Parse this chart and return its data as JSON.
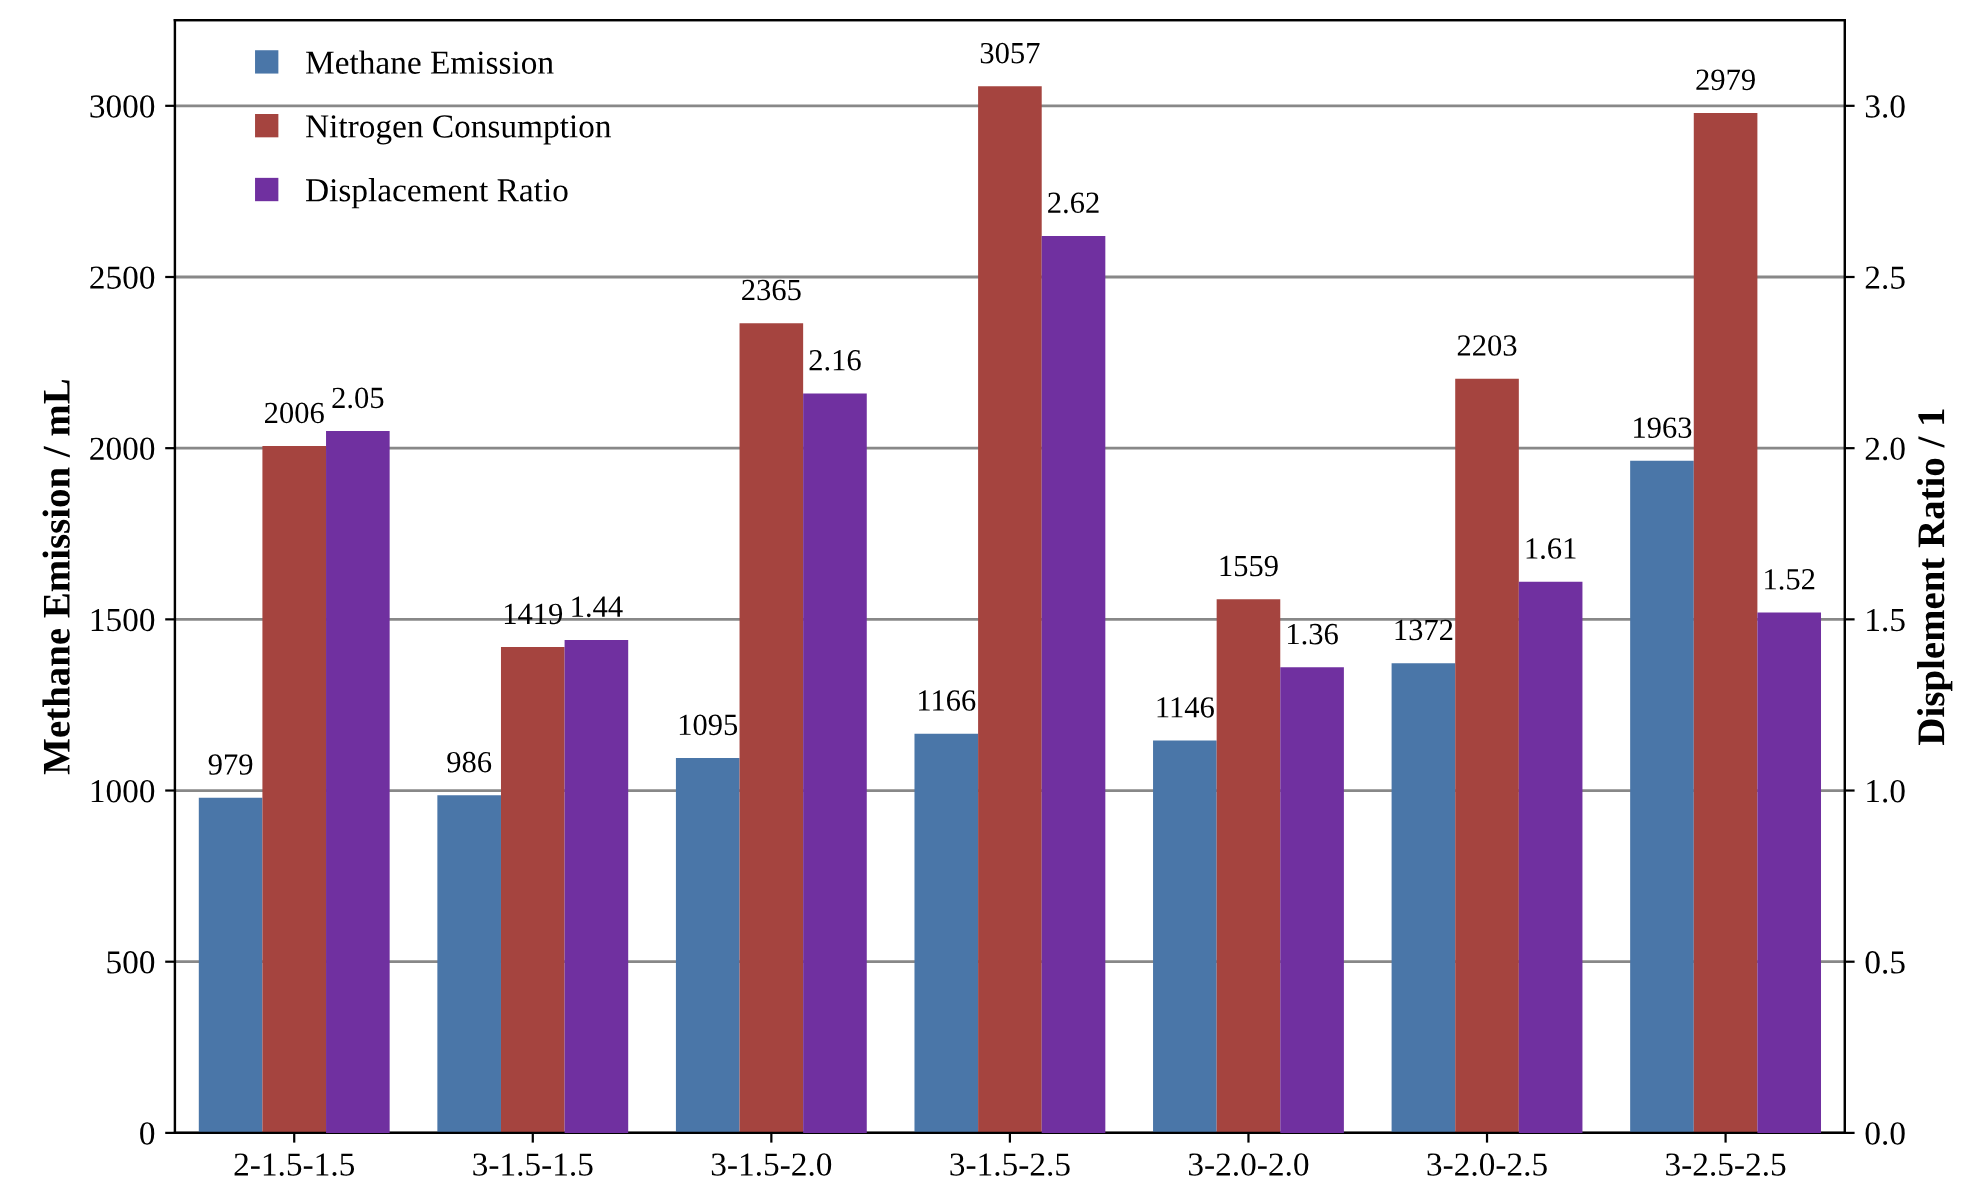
{
  "chart_data": {
    "type": "bar",
    "ylabel": "Methane Emission / mL",
    "y2label": "Displement Ratio / 1",
    "categories": [
      "2-1.5-1.5",
      "3-1.5-1.5",
      "3-1.5-2.0",
      "3-1.5-2.5",
      "3-2.0-2.0",
      "3-2.0-2.5",
      "3-2.5-2.5"
    ],
    "series": [
      {
        "name": "Methane Emission",
        "color": "#4a76a8",
        "values": [
          979,
          986,
          1095,
          1166,
          1146,
          1372,
          1963
        ]
      },
      {
        "name": "Nitrogen Consumption",
        "color": "#a5443f",
        "values": [
          2006,
          1419,
          2365,
          3057,
          1559,
          2203,
          2979
        ]
      },
      {
        "name": "Displacement Ratio",
        "color": "#7030a0",
        "axis": "y2",
        "values": [
          2.05,
          1.44,
          2.16,
          2.62,
          1.36,
          1.61,
          1.52
        ]
      }
    ],
    "ylim": [
      0,
      3250
    ],
    "yticks": [
      0,
      500,
      1000,
      1500,
      2000,
      2500,
      3000
    ],
    "y2lim": [
      0,
      3.25
    ],
    "y2ticks": [
      {
        "value": 0,
        "label": "0.0"
      },
      {
        "value": 0.5,
        "label": "0.5"
      },
      {
        "value": 1,
        "label": "1.0"
      },
      {
        "value": 1.5,
        "label": "1.5"
      },
      {
        "value": 2,
        "label": "2.0"
      },
      {
        "value": 2.5,
        "label": "2.5"
      },
      {
        "value": 3,
        "label": "3.0"
      }
    ],
    "grid": "y",
    "legend": "top left",
    "data_labels": true
  }
}
